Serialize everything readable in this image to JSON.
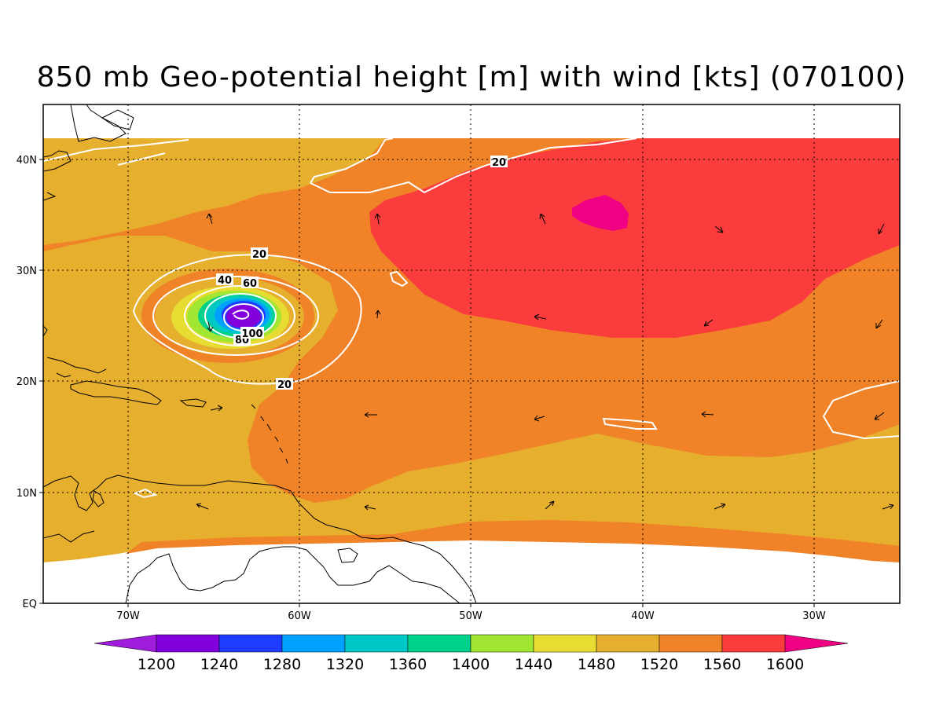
{
  "title": "850 mb Geo-potential height [m] with wind [kts] (070100)",
  "lat_labels": [
    "40N",
    "30N",
    "20N",
    "10N",
    "EQ"
  ],
  "lon_labels": [
    "70W",
    "60W",
    "50W",
    "40W",
    "30W"
  ],
  "contour_labels": [
    "20",
    "20",
    "20",
    "40",
    "60",
    "80",
    "100"
  ],
  "colorbar": {
    "labels": [
      "1200",
      "1240",
      "1280",
      "1320",
      "1360",
      "1400",
      "1440",
      "1480",
      "1520",
      "1560",
      "1600"
    ],
    "colors": [
      "#a01cdc",
      "#8200dc",
      "#1e3cff",
      "#00a0ff",
      "#00c8c8",
      "#00d28c",
      "#a0e632",
      "#e6dc32",
      "#e6af2d",
      "#f08228",
      "#fa3c3c",
      "#f00082"
    ]
  }
}
